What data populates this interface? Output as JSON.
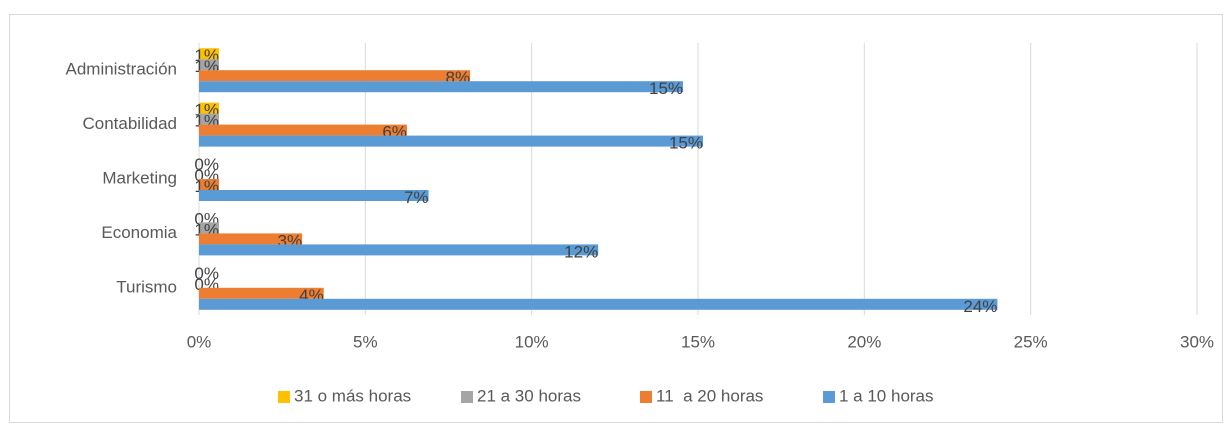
{
  "chart_data": {
    "type": "bar",
    "orientation": "horizontal",
    "categories": [
      "Administración",
      "Contabilidad",
      "Marketing",
      "Economia",
      "Turismo"
    ],
    "series": [
      {
        "name": "31 o más horas",
        "color": "#ffc000",
        "values": [
          0.6,
          0.6,
          0,
          0,
          0
        ],
        "value_labels": [
          "1%",
          "1%",
          "0%",
          "0%",
          "0%"
        ]
      },
      {
        "name": "21 a 30 horas",
        "color": "#a5a5a5",
        "values": [
          0.6,
          0.6,
          0,
          0.6,
          0
        ],
        "value_labels": [
          "1%",
          "1%",
          "0%",
          "1%",
          "0%"
        ]
      },
      {
        "name": "11  a 20 horas",
        "color": "#ed7d31",
        "values": [
          8.15,
          6.25,
          0.6,
          3.1,
          3.75
        ],
        "value_labels": [
          "8%",
          "6%",
          "1%",
          "3%",
          "4%"
        ]
      },
      {
        "name": "1 a 10 horas",
        "color": "#5b9bd5",
        "values": [
          14.55,
          15.15,
          6.9,
          12.0,
          24.0
        ],
        "value_labels": [
          "15%",
          "15%",
          "7%",
          "12%",
          "24%"
        ]
      }
    ],
    "xlim": [
      0,
      30
    ],
    "xticks": [
      {
        "value": 0,
        "label": "0%"
      },
      {
        "value": 5,
        "label": "5%"
      },
      {
        "value": 10,
        "label": "10%"
      },
      {
        "value": 15,
        "label": "15%"
      },
      {
        "value": 20,
        "label": "20%"
      },
      {
        "value": 25,
        "label": "25%"
      },
      {
        "value": 30,
        "label": "30%"
      }
    ],
    "grid": true,
    "legend": "bottom"
  }
}
